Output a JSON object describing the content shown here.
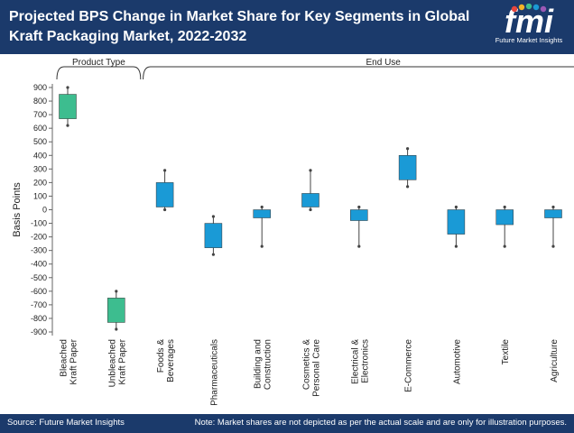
{
  "header": {
    "title": "Projected BPS Change in Market Share for Key Segments in Global Kraft Packaging Market, 2022-2032",
    "logo_text": "fmi",
    "logo_subtext": "Future Market Insights"
  },
  "footer": {
    "source": "Source: Future Market Insights",
    "note": "Note: Market shares are not depicted as per the actual scale and are only for illustration purposes."
  },
  "colors": {
    "header_bg": "#1b3a6b",
    "green": "#3dbd8f",
    "blue": "#1a9ad6",
    "whisker": "#444444"
  },
  "chart_data": {
    "type": "box",
    "ylabel": "Basis Points",
    "ylim": [
      -900,
      900
    ],
    "yticks": [
      900,
      800,
      700,
      600,
      500,
      400,
      300,
      200,
      100,
      0,
      -100,
      -200,
      -300,
      -400,
      -500,
      -600,
      -700,
      -800,
      -900
    ],
    "groups": [
      {
        "label": "Product Type",
        "start": 0,
        "end": 1
      },
      {
        "label": "End Use",
        "start": 2,
        "end": 11
      }
    ],
    "categories": [
      {
        "name": "Bleached Kraft Paper",
        "lines": [
          "Bleached",
          "Kraft Paper"
        ],
        "low": 620,
        "q1": 670,
        "q3": 850,
        "high": 900,
        "color": "green"
      },
      {
        "name": "Unbleached Kraft Paper",
        "lines": [
          "Unbleached",
          "Kraft Paper"
        ],
        "low": -880,
        "q1": -830,
        "q3": -650,
        "high": -600,
        "color": "green"
      },
      {
        "name": "Foods & Beverages",
        "lines": [
          "Foods &",
          "Beverages"
        ],
        "low": 0,
        "q1": 20,
        "q3": 200,
        "high": 290,
        "color": "blue"
      },
      {
        "name": "Pharmaceuticals",
        "lines": [
          "Pharmaceuticals"
        ],
        "low": -330,
        "q1": -280,
        "q3": -100,
        "high": -50,
        "color": "blue"
      },
      {
        "name": "Building and Construction",
        "lines": [
          "Building and",
          "Construction"
        ],
        "low": -270,
        "q1": -60,
        "q3": 0,
        "high": 20,
        "color": "blue"
      },
      {
        "name": "Cosmetics & Personal Care",
        "lines": [
          "Cosmetics &",
          "Personal Care"
        ],
        "low": 0,
        "q1": 20,
        "q3": 120,
        "high": 290,
        "color": "blue"
      },
      {
        "name": "Electrical & Electronics",
        "lines": [
          "Electrical &",
          "Electronics"
        ],
        "low": -270,
        "q1": -80,
        "q3": 0,
        "high": 20,
        "color": "blue"
      },
      {
        "name": "E-Commerce",
        "lines": [
          "E-Commerce"
        ],
        "low": 170,
        "q1": 220,
        "q3": 400,
        "high": 450,
        "color": "blue"
      },
      {
        "name": "Automotive",
        "lines": [
          "Automotive"
        ],
        "low": -270,
        "q1": -180,
        "q3": 0,
        "high": 20,
        "color": "blue"
      },
      {
        "name": "Textile",
        "lines": [
          "Textile"
        ],
        "low": -270,
        "q1": -110,
        "q3": 0,
        "high": 20,
        "color": "blue"
      },
      {
        "name": "Agriculture",
        "lines": [
          "Agriculture"
        ],
        "low": -270,
        "q1": -60,
        "q3": 0,
        "high": 20,
        "color": "blue"
      }
    ]
  }
}
